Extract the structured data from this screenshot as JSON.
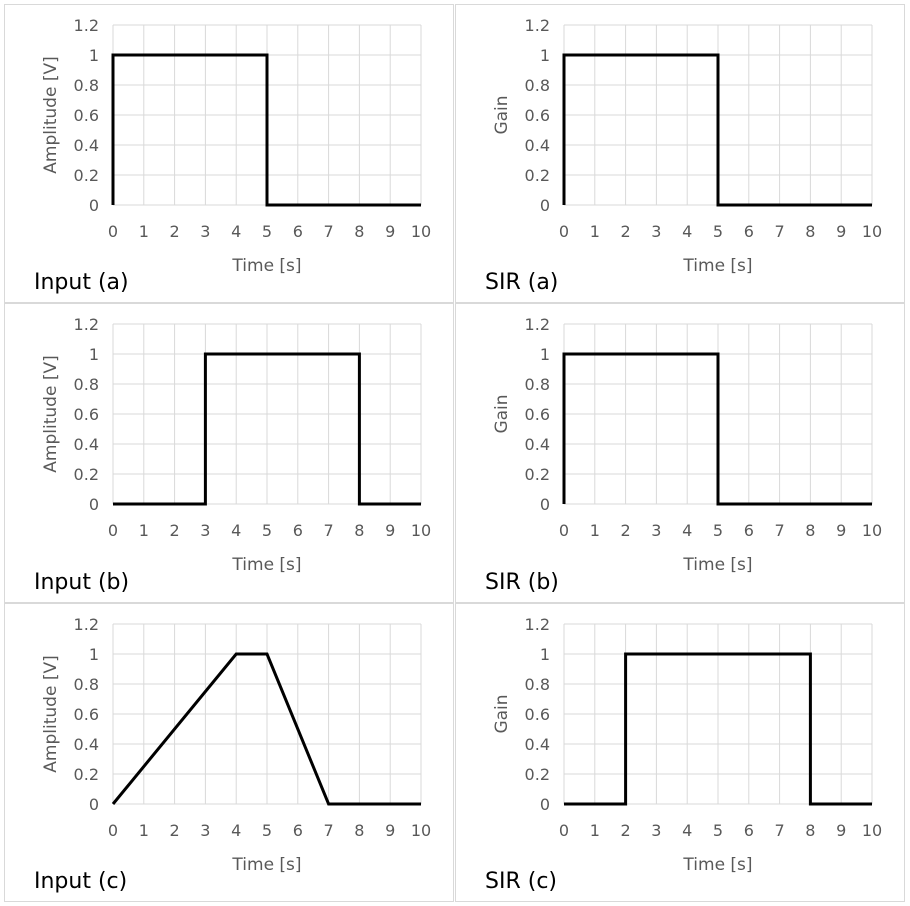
{
  "chart_data": [
    {
      "type": "line",
      "panel_label": "Input (a)",
      "xlabel": "Time [s]",
      "ylabel": "Amplitude [V]",
      "xlim": [
        0,
        10
      ],
      "ylim": [
        0,
        1.2
      ],
      "xticks": [
        "0",
        "1",
        "2",
        "3",
        "4",
        "5",
        "6",
        "7",
        "8",
        "9",
        "10"
      ],
      "yticks": [
        "0",
        "0.2",
        "0.4",
        "0.6",
        "0.8",
        "1",
        "1.2"
      ],
      "grid": true,
      "series": [
        {
          "x": [
            0,
            0,
            5,
            5,
            10
          ],
          "y": [
            0,
            1,
            1,
            0,
            0
          ]
        }
      ]
    },
    {
      "type": "line",
      "panel_label": "SIR (a)",
      "xlabel": "Time [s]",
      "ylabel": "Gain",
      "xlim": [
        0,
        10
      ],
      "ylim": [
        0,
        1.2
      ],
      "xticks": [
        "0",
        "1",
        "2",
        "3",
        "4",
        "5",
        "6",
        "7",
        "8",
        "9",
        "10"
      ],
      "yticks": [
        "0",
        "0.2",
        "0.4",
        "0.6",
        "0.8",
        "1",
        "1.2"
      ],
      "grid": true,
      "series": [
        {
          "x": [
            0,
            0,
            5,
            5,
            10
          ],
          "y": [
            0,
            1,
            1,
            0,
            0
          ]
        }
      ]
    },
    {
      "type": "line",
      "panel_label": "Input (b)",
      "xlabel": "Time [s]",
      "ylabel": "Amplitude [V]",
      "xlim": [
        0,
        10
      ],
      "ylim": [
        0,
        1.2
      ],
      "xticks": [
        "0",
        "1",
        "2",
        "3",
        "4",
        "5",
        "6",
        "7",
        "8",
        "9",
        "10"
      ],
      "yticks": [
        "0",
        "0.2",
        "0.4",
        "0.6",
        "0.8",
        "1",
        "1.2"
      ],
      "grid": true,
      "series": [
        {
          "x": [
            0,
            3,
            3,
            8,
            8,
            10
          ],
          "y": [
            0,
            0,
            1,
            1,
            0,
            0
          ]
        }
      ]
    },
    {
      "type": "line",
      "panel_label": "SIR (b)",
      "xlabel": "Time [s]",
      "ylabel": "Gain",
      "xlim": [
        0,
        10
      ],
      "ylim": [
        0,
        1.2
      ],
      "xticks": [
        "0",
        "1",
        "2",
        "3",
        "4",
        "5",
        "6",
        "7",
        "8",
        "9",
        "10"
      ],
      "yticks": [
        "0",
        "0.2",
        "0.4",
        "0.6",
        "0.8",
        "1",
        "1.2"
      ],
      "grid": true,
      "series": [
        {
          "x": [
            0,
            0,
            5,
            5,
            10
          ],
          "y": [
            0,
            1,
            1,
            0,
            0
          ]
        }
      ]
    },
    {
      "type": "line",
      "panel_label": "Input (c)",
      "xlabel": "Time [s]",
      "ylabel": "Amplitude [V]",
      "xlim": [
        0,
        10
      ],
      "ylim": [
        0,
        1.2
      ],
      "xticks": [
        "0",
        "1",
        "2",
        "3",
        "4",
        "5",
        "6",
        "7",
        "8",
        "9",
        "10"
      ],
      "yticks": [
        "0",
        "0.2",
        "0.4",
        "0.6",
        "0.8",
        "1",
        "1.2"
      ],
      "grid": true,
      "series": [
        {
          "x": [
            0,
            4,
            5,
            7,
            10
          ],
          "y": [
            0,
            1,
            1,
            0,
            0
          ]
        }
      ]
    },
    {
      "type": "line",
      "panel_label": "SIR (c)",
      "xlabel": "Time [s]",
      "ylabel": "Gain",
      "xlim": [
        0,
        10
      ],
      "ylim": [
        0,
        1.2
      ],
      "xticks": [
        "0",
        "1",
        "2",
        "3",
        "4",
        "5",
        "6",
        "7",
        "8",
        "9",
        "10"
      ],
      "yticks": [
        "0",
        "0.2",
        "0.4",
        "0.6",
        "0.8",
        "1",
        "1.2"
      ],
      "grid": true,
      "series": [
        {
          "x": [
            0,
            2,
            2,
            8,
            8,
            10
          ],
          "y": [
            0,
            0,
            1,
            1,
            0,
            0
          ]
        }
      ]
    }
  ],
  "colors": {
    "line": "#000000",
    "grid": "#d9d9d9",
    "tick_text": "#595959",
    "panel_border": "#d9d9d9"
  }
}
